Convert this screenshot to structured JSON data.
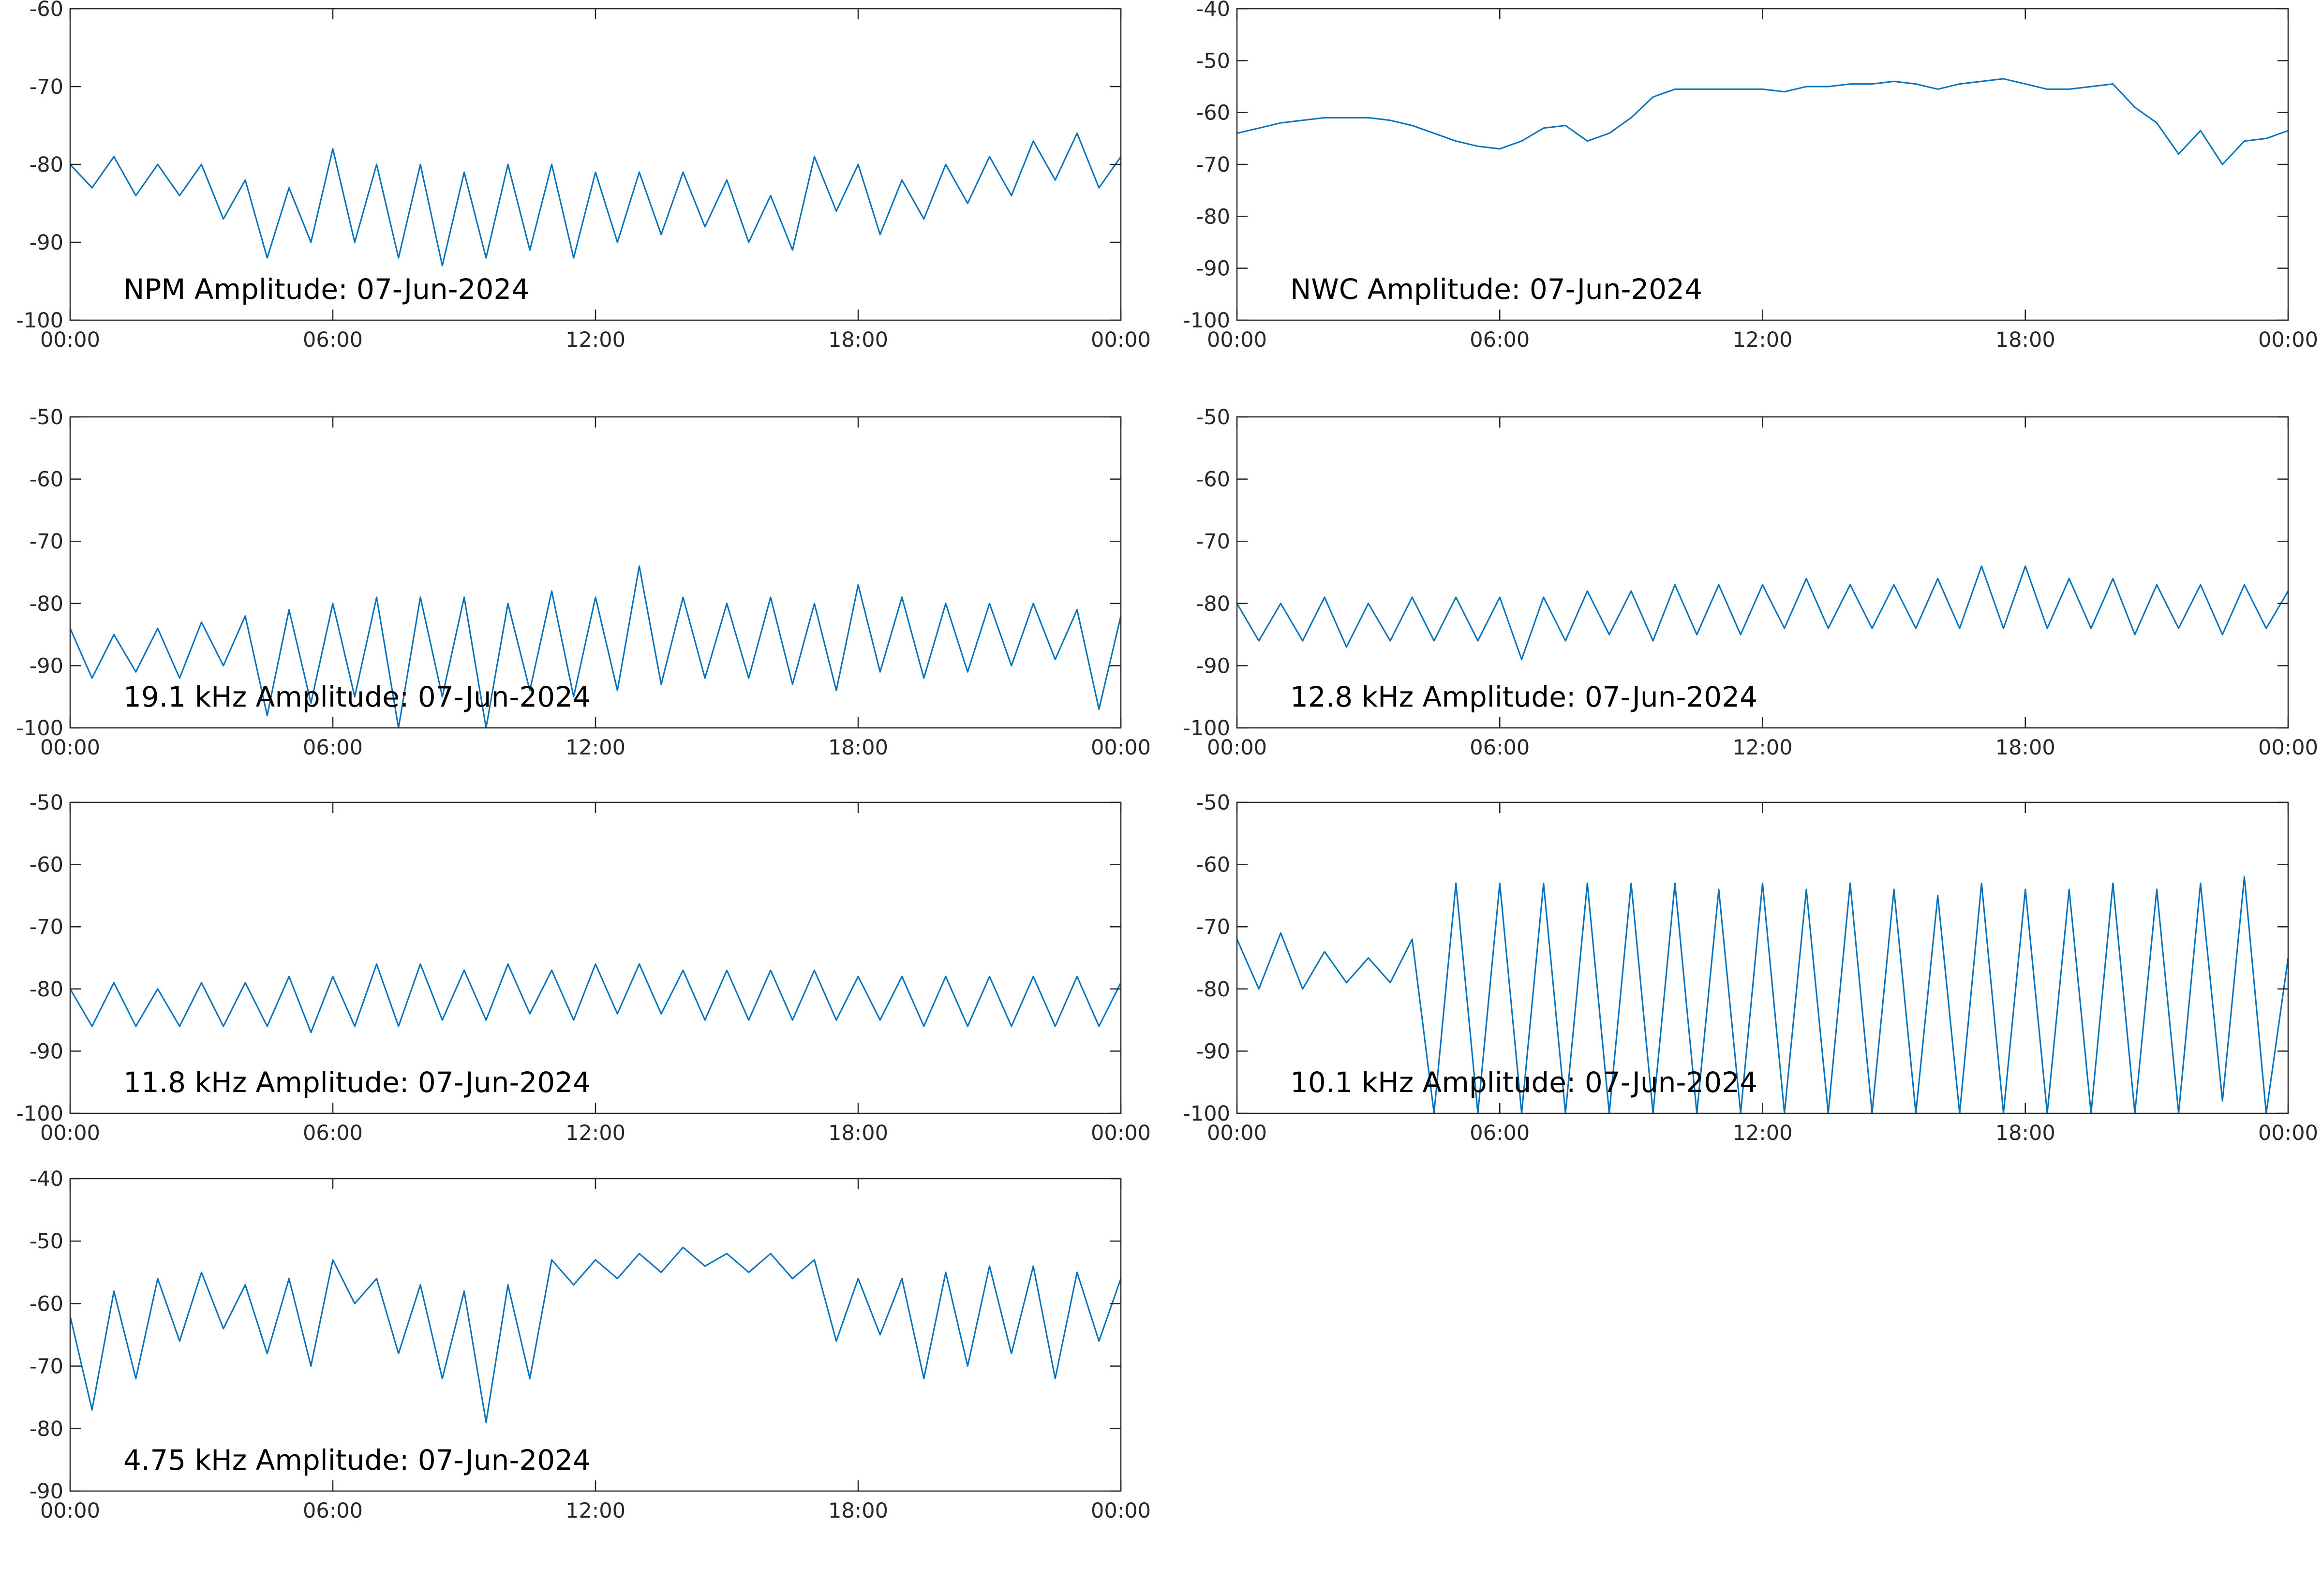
{
  "chart_data": [
    {
      "type": "line",
      "title": "NPM Amplitude: 07-Jun-2024",
      "color": "#0072bd",
      "x": [
        0,
        0.5,
        1,
        1.5,
        2,
        2.5,
        3,
        3.5,
        4,
        4.5,
        5,
        5.5,
        6,
        6.5,
        7,
        7.5,
        8,
        8.5,
        9,
        9.5,
        10,
        10.5,
        11,
        11.5,
        12,
        12.5,
        13,
        13.5,
        14,
        14.5,
        15,
        15.5,
        16,
        16.5,
        17,
        17.5,
        18,
        18.5,
        19,
        19.5,
        20,
        20.5,
        21,
        21.5,
        22,
        22.5,
        23,
        23.5,
        24
      ],
      "values": [
        -80,
        -83,
        -79,
        -84,
        -80,
        -84,
        -80,
        -87,
        -82,
        -92,
        -83,
        -90,
        -78,
        -90,
        -80,
        -92,
        -80,
        -93,
        -81,
        -92,
        -80,
        -91,
        -80,
        -92,
        -81,
        -90,
        -81,
        -89,
        -81,
        -88,
        -82,
        -90,
        -84,
        -91,
        -79,
        -86,
        -80,
        -89,
        -82,
        -87,
        -80,
        -85,
        -79,
        -84,
        -77,
        -82,
        -76,
        -83,
        -79
      ],
      "xlim": [
        0,
        24
      ],
      "xticks": [
        {
          "value": 0,
          "label": "00:00"
        },
        {
          "value": 6,
          "label": "06:00"
        },
        {
          "value": 12,
          "label": "12:00"
        },
        {
          "value": 18,
          "label": "18:00"
        },
        {
          "value": 24,
          "label": "00:00"
        }
      ],
      "ylim": [
        -100,
        -60
      ],
      "yticks": [
        -100,
        -90,
        -80,
        -70,
        -60
      ]
    },
    {
      "type": "line",
      "title": "NWC Amplitude: 07-Jun-2024",
      "color": "#0072bd",
      "x": [
        0,
        0.5,
        1,
        1.5,
        2,
        2.5,
        3,
        3.5,
        4,
        4.5,
        5,
        5.5,
        6,
        6.5,
        7,
        7.5,
        8,
        8.5,
        9,
        9.5,
        10,
        10.5,
        11,
        11.5,
        12,
        12.5,
        13,
        13.5,
        14,
        14.5,
        15,
        15.5,
        16,
        16.5,
        17,
        17.5,
        18,
        18.5,
        19,
        19.5,
        20,
        20.5,
        21,
        21.5,
        22,
        22.5,
        23,
        23.5,
        24
      ],
      "values": [
        -64,
        -63,
        -62,
        -61.5,
        -61,
        -61,
        -61,
        -61.5,
        -62.5,
        -64,
        -65.5,
        -66.5,
        -67,
        -65.5,
        -63,
        -62.5,
        -65.5,
        -64,
        -61,
        -57,
        -55.5,
        -55.5,
        -55.5,
        -55.5,
        -55.5,
        -56,
        -55,
        -55,
        -54.5,
        -54.5,
        -54,
        -54.5,
        -55.5,
        -54.5,
        -54,
        -53.5,
        -54.5,
        -55.5,
        -55.5,
        -55,
        -54.5,
        -59,
        -62,
        -68,
        -63.5,
        -70,
        -65.5,
        -65,
        -63.5
      ],
      "xlim": [
        0,
        24
      ],
      "xticks": [
        {
          "value": 0,
          "label": "00:00"
        },
        {
          "value": 6,
          "label": "06:00"
        },
        {
          "value": 12,
          "label": "12:00"
        },
        {
          "value": 18,
          "label": "18:00"
        },
        {
          "value": 24,
          "label": "00:00"
        }
      ],
      "ylim": [
        -100,
        -40
      ],
      "yticks": [
        -100,
        -90,
        -80,
        -70,
        -60,
        -50,
        -40
      ]
    },
    {
      "type": "line",
      "title": "19.1 kHz Amplitude: 07-Jun-2024",
      "color": "#0072bd",
      "x": [
        0,
        0.5,
        1,
        1.5,
        2,
        2.5,
        3,
        3.5,
        4,
        4.5,
        5,
        5.5,
        6,
        6.5,
        7,
        7.5,
        8,
        8.5,
        9,
        9.5,
        10,
        10.5,
        11,
        11.5,
        12,
        12.5,
        13,
        13.5,
        14,
        14.5,
        15,
        15.5,
        16,
        16.5,
        17,
        17.5,
        18,
        18.5,
        19,
        19.5,
        20,
        20.5,
        21,
        21.5,
        22,
        22.5,
        23,
        23.5,
        24
      ],
      "values": [
        -84,
        -92,
        -85,
        -91,
        -84,
        -92,
        -83,
        -90,
        -82,
        -98,
        -81,
        -96,
        -80,
        -95,
        -79,
        -100,
        -79,
        -95,
        -79,
        -100,
        -80,
        -94,
        -78,
        -95,
        -79,
        -94,
        -74,
        -93,
        -79,
        -92,
        -80,
        -92,
        -79,
        -93,
        -80,
        -94,
        -77,
        -91,
        -79,
        -92,
        -80,
        -91,
        -80,
        -90,
        -80,
        -89,
        -81,
        -97,
        -82
      ],
      "xlim": [
        0,
        24
      ],
      "xticks": [
        {
          "value": 0,
          "label": "00:00"
        },
        {
          "value": 6,
          "label": "06:00"
        },
        {
          "value": 12,
          "label": "12:00"
        },
        {
          "value": 18,
          "label": "18:00"
        },
        {
          "value": 24,
          "label": "00:00"
        }
      ],
      "ylim": [
        -100,
        -50
      ],
      "yticks": [
        -100,
        -90,
        -80,
        -70,
        -60,
        -50
      ]
    },
    {
      "type": "line",
      "title": "12.8 kHz Amplitude: 07-Jun-2024",
      "color": "#0072bd",
      "x": [
        0,
        0.5,
        1,
        1.5,
        2,
        2.5,
        3,
        3.5,
        4,
        4.5,
        5,
        5.5,
        6,
        6.5,
        7,
        7.5,
        8,
        8.5,
        9,
        9.5,
        10,
        10.5,
        11,
        11.5,
        12,
        12.5,
        13,
        13.5,
        14,
        14.5,
        15,
        15.5,
        16,
        16.5,
        17,
        17.5,
        18,
        18.5,
        19,
        19.5,
        20,
        20.5,
        21,
        21.5,
        22,
        22.5,
        23,
        23.5,
        24
      ],
      "values": [
        -80,
        -86,
        -80,
        -86,
        -79,
        -87,
        -80,
        -86,
        -79,
        -86,
        -79,
        -86,
        -79,
        -89,
        -79,
        -86,
        -78,
        -85,
        -78,
        -86,
        -77,
        -85,
        -77,
        -85,
        -77,
        -84,
        -76,
        -84,
        -77,
        -84,
        -77,
        -84,
        -76,
        -84,
        -74,
        -84,
        -74,
        -84,
        -76,
        -84,
        -76,
        -85,
        -77,
        -84,
        -77,
        -85,
        -77,
        -84,
        -78
      ],
      "xlim": [
        0,
        24
      ],
      "xticks": [
        {
          "value": 0,
          "label": "00:00"
        },
        {
          "value": 6,
          "label": "06:00"
        },
        {
          "value": 12,
          "label": "12:00"
        },
        {
          "value": 18,
          "label": "18:00"
        },
        {
          "value": 24,
          "label": "00:00"
        }
      ],
      "ylim": [
        -100,
        -50
      ],
      "yticks": [
        -100,
        -90,
        -80,
        -70,
        -60,
        -50
      ]
    },
    {
      "type": "line",
      "title": "11.8 kHz Amplitude: 07-Jun-2024",
      "color": "#0072bd",
      "x": [
        0,
        0.5,
        1,
        1.5,
        2,
        2.5,
        3,
        3.5,
        4,
        4.5,
        5,
        5.5,
        6,
        6.5,
        7,
        7.5,
        8,
        8.5,
        9,
        9.5,
        10,
        10.5,
        11,
        11.5,
        12,
        12.5,
        13,
        13.5,
        14,
        14.5,
        15,
        15.5,
        16,
        16.5,
        17,
        17.5,
        18,
        18.5,
        19,
        19.5,
        20,
        20.5,
        21,
        21.5,
        22,
        22.5,
        23,
        23.5,
        24
      ],
      "values": [
        -80,
        -86,
        -79,
        -86,
        -80,
        -86,
        -79,
        -86,
        -79,
        -86,
        -78,
        -87,
        -78,
        -86,
        -76,
        -86,
        -76,
        -85,
        -77,
        -85,
        -76,
        -84,
        -77,
        -85,
        -76,
        -84,
        -76,
        -84,
        -77,
        -85,
        -77,
        -85,
        -77,
        -85,
        -77,
        -85,
        -78,
        -85,
        -78,
        -86,
        -78,
        -86,
        -78,
        -86,
        -78,
        -86,
        -78,
        -86,
        -79
      ],
      "xlim": [
        0,
        24
      ],
      "xticks": [
        {
          "value": 0,
          "label": "00:00"
        },
        {
          "value": 6,
          "label": "06:00"
        },
        {
          "value": 12,
          "label": "12:00"
        },
        {
          "value": 18,
          "label": "18:00"
        },
        {
          "value": 24,
          "label": "00:00"
        }
      ],
      "ylim": [
        -100,
        -50
      ],
      "yticks": [
        -100,
        -90,
        -80,
        -70,
        -60,
        -50
      ]
    },
    {
      "type": "line",
      "title": "10.1 kHz Amplitude: 07-Jun-2024",
      "color": "#0072bd",
      "x": [
        0,
        0.5,
        1,
        1.5,
        2,
        2.5,
        3,
        3.5,
        4,
        4.5,
        5,
        5.5,
        6,
        6.5,
        7,
        7.5,
        8,
        8.5,
        9,
        9.5,
        10,
        10.5,
        11,
        11.5,
        12,
        12.5,
        13,
        13.5,
        14,
        14.5,
        15,
        15.5,
        16,
        16.5,
        17,
        17.5,
        18,
        18.5,
        19,
        19.5,
        20,
        20.5,
        21,
        21.5,
        22,
        22.5,
        23,
        23.5,
        24
      ],
      "values": [
        -72,
        -80,
        -71,
        -80,
        -74,
        -79,
        -75,
        -79,
        -72,
        -100,
        -63,
        -100,
        -63,
        -100,
        -63,
        -100,
        -63,
        -100,
        -63,
        -100,
        -63,
        -100,
        -64,
        -100,
        -63,
        -100,
        -64,
        -100,
        -63,
        -100,
        -64,
        -100,
        -65,
        -100,
        -63,
        -100,
        -64,
        -100,
        -64,
        -100,
        -63,
        -100,
        -64,
        -100,
        -63,
        -98,
        -62,
        -100,
        -75
      ],
      "xlim": [
        0,
        24
      ],
      "xticks": [
        {
          "value": 0,
          "label": "00:00"
        },
        {
          "value": 6,
          "label": "06:00"
        },
        {
          "value": 12,
          "label": "12:00"
        },
        {
          "value": 18,
          "label": "18:00"
        },
        {
          "value": 24,
          "label": "00:00"
        }
      ],
      "ylim": [
        -100,
        -50
      ],
      "yticks": [
        -100,
        -90,
        -80,
        -70,
        -60,
        -50
      ]
    },
    {
      "type": "line",
      "title": "4.75 kHz Amplitude: 07-Jun-2024",
      "color": "#0072bd",
      "x": [
        0,
        0.5,
        1,
        1.5,
        2,
        2.5,
        3,
        3.5,
        4,
        4.5,
        5,
        5.5,
        6,
        6.5,
        7,
        7.5,
        8,
        8.5,
        9,
        9.5,
        10,
        10.5,
        11,
        11.5,
        12,
        12.5,
        13,
        13.5,
        14,
        14.5,
        15,
        15.5,
        16,
        16.5,
        17,
        17.5,
        18,
        18.5,
        19,
        19.5,
        20,
        20.5,
        21,
        21.5,
        22,
        22.5,
        23,
        23.5,
        24
      ],
      "values": [
        -62,
        -77,
        -58,
        -72,
        -56,
        -66,
        -55,
        -64,
        -57,
        -68,
        -56,
        -70,
        -53,
        -60,
        -56,
        -68,
        -57,
        -72,
        -58,
        -79,
        -57,
        -72,
        -53,
        -57,
        -53,
        -56,
        -52,
        -55,
        -51,
        -54,
        -52,
        -55,
        -52,
        -56,
        -53,
        -66,
        -56,
        -65,
        -56,
        -72,
        -55,
        -70,
        -54,
        -68,
        -54,
        -72,
        -55,
        -66,
        -56
      ],
      "xlim": [
        0,
        24
      ],
      "xticks": [
        {
          "value": 0,
          "label": "00:00"
        },
        {
          "value": 6,
          "label": "06:00"
        },
        {
          "value": 12,
          "label": "12:00"
        },
        {
          "value": 18,
          "label": "18:00"
        },
        {
          "value": 24,
          "label": "00:00"
        }
      ],
      "ylim": [
        -90,
        -40
      ],
      "yticks": [
        -90,
        -80,
        -70,
        -60,
        -50,
        -40
      ]
    }
  ]
}
